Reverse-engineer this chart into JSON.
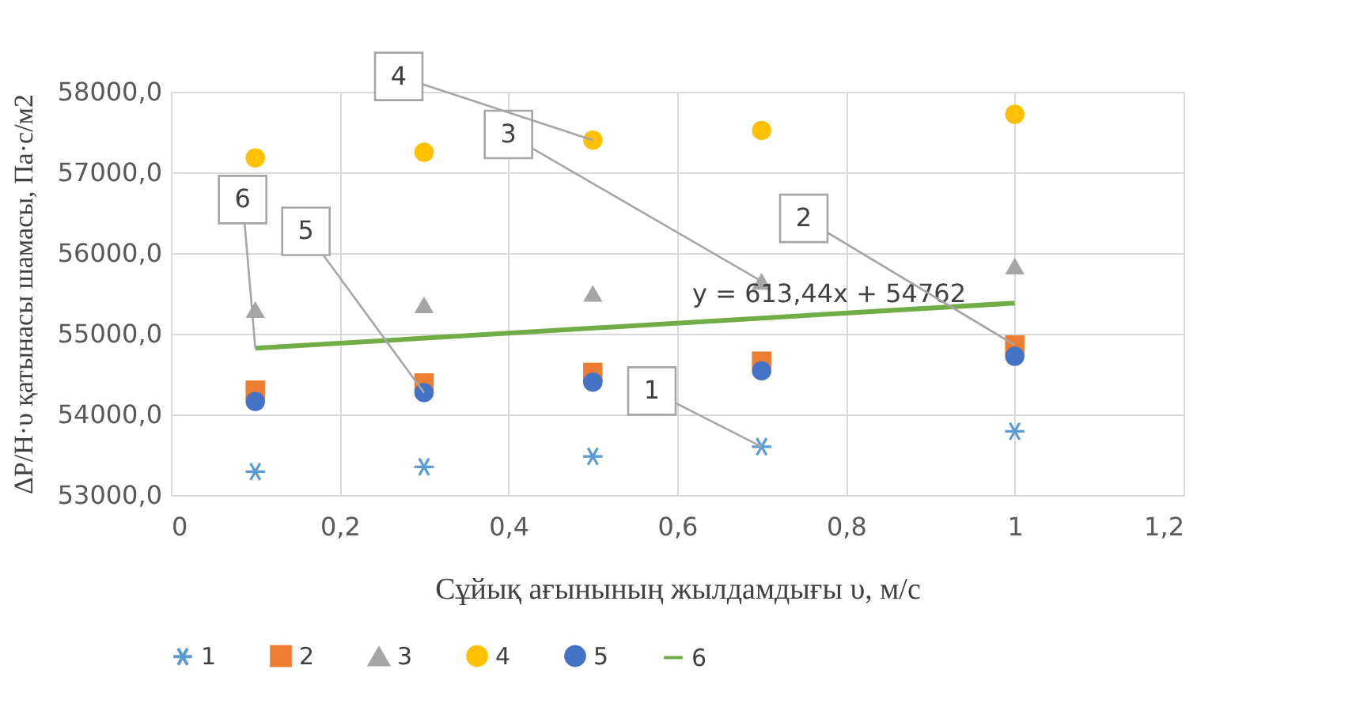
{
  "chart_data": {
    "type": "scatter",
    "xlabel": "Сұйық ағынының жылдамдығы υ, м/с",
    "ylabel": "ΔP/H·υ қатынасы шамасы, Па·с/м2",
    "x": [
      0.1,
      0.3,
      0.5,
      0.7,
      1
    ],
    "series": [
      {
        "name": "1",
        "color": "#5b9bd5",
        "marker": "cross",
        "values": [
          53290,
          53350,
          53480,
          53600,
          53790
        ]
      },
      {
        "name": "2",
        "color": "#ed7d31",
        "marker": "square",
        "values": [
          54300,
          54390,
          54520,
          54660,
          54860
        ]
      },
      {
        "name": "3",
        "color": "#a5a5a5",
        "marker": "triangle",
        "values": [
          55300,
          55360,
          55500,
          55650,
          55840
        ]
      },
      {
        "name": "4",
        "color": "#ffc000",
        "marker": "circle",
        "values": [
          57180,
          57250,
          57400,
          57520,
          57720
        ]
      },
      {
        "name": "5",
        "color": "#4472c4",
        "marker": "circle",
        "values": [
          54160,
          54270,
          54400,
          54540,
          54720
        ]
      },
      {
        "name": "6",
        "color": "#70ad47",
        "type": "line",
        "marker": "none",
        "x": [
          0.1,
          1
        ],
        "values": [
          54820,
          55380
        ]
      }
    ],
    "annotations": [
      "y = 613,44x + 54762",
      {
        "text": "1",
        "x": 0.7,
        "y": 53600
      },
      {
        "text": "2",
        "x": 1,
        "y": 54860
      },
      {
        "text": "3",
        "x": 0.7,
        "y": 55650
      },
      {
        "text": "4",
        "x": 0.5,
        "y": 57400
      },
      {
        "text": "5",
        "x": 0.3,
        "y": 54270
      },
      {
        "text": "6",
        "x": 0.1,
        "y": 54823
      }
    ],
    "xlim": [
      0,
      1.2
    ],
    "xticks": [
      {
        "value": 0,
        "label": "0"
      },
      {
        "value": 0.2,
        "label": "0,2"
      },
      {
        "value": 0.4,
        "label": "0,4"
      },
      {
        "value": 0.6,
        "label": "0,6"
      },
      {
        "value": 0.8,
        "label": "0,8"
      },
      {
        "value": 1,
        "label": "1"
      },
      {
        "value": 1.2,
        "label": "1,2"
      }
    ],
    "ylim": [
      53000,
      58000
    ],
    "yticks": [
      {
        "value": 53000,
        "label": "53000,0"
      },
      {
        "value": 54000,
        "label": "54000,0"
      },
      {
        "value": 55000,
        "label": "55000,0"
      },
      {
        "value": 56000,
        "label": "56000,0"
      },
      {
        "value": 57000,
        "label": "57000,0"
      },
      {
        "value": 58000,
        "label": "58000,0"
      }
    ],
    "grid": true,
    "legend": "bottom"
  }
}
